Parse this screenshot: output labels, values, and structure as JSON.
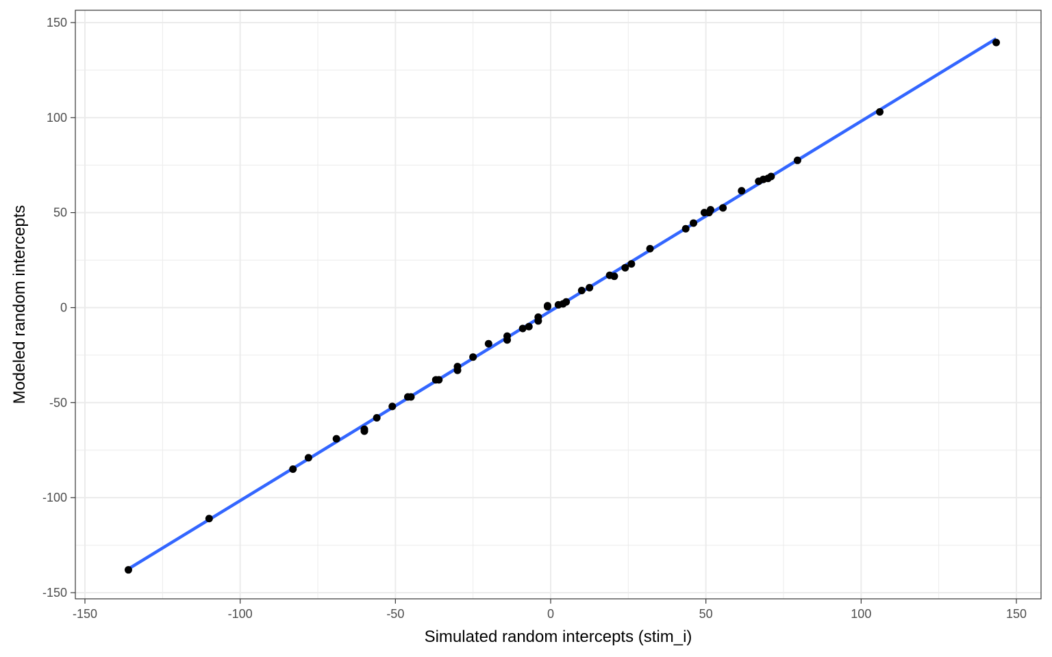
{
  "chart_data": {
    "type": "scatter",
    "title": "",
    "xlabel": "Simulated random intercepts (stim_i)",
    "ylabel": "Modeled random intercepts",
    "xlim": [
      -150,
      150
    ],
    "ylim": [
      -150,
      150
    ],
    "x_ticks": [
      -150,
      -100,
      -50,
      0,
      50,
      100,
      150
    ],
    "y_ticks": [
      -150,
      -100,
      -50,
      0,
      50,
      100,
      150
    ],
    "x_tick_labels": [
      "-150",
      "-100",
      "-50",
      "0",
      "50",
      "100",
      "150"
    ],
    "y_tick_labels": [
      "-150",
      "-100",
      "-50",
      "0",
      "50",
      "100",
      "150"
    ],
    "grid": true,
    "legend": "none",
    "colors": {
      "points": "#000000",
      "fit_line": "#3366FF",
      "grid": "#ebebeb",
      "panel_border": "#333333"
    },
    "series": [
      {
        "kind": "points",
        "x": [
          -136,
          -110,
          -83,
          -78,
          -69,
          -60,
          -60,
          -56,
          -51,
          -46,
          -45,
          -37,
          -36,
          -30,
          -30,
          -25,
          -20,
          -14,
          -14,
          -9,
          -7,
          -4,
          -4,
          -1,
          -1,
          2.5,
          4,
          5,
          10,
          12.5,
          19,
          20.5,
          24,
          26,
          32,
          43.5,
          46,
          49.5,
          51,
          51.5,
          55.5,
          61.5,
          67,
          68.5,
          70,
          71,
          79.5,
          106,
          143.5
        ],
        "y": [
          -138,
          -111,
          -85,
          -79,
          -69,
          -64,
          -65,
          -58,
          -52,
          -47,
          -47,
          -38,
          -38,
          -31,
          -33,
          -26,
          -19,
          -15,
          -17,
          -11,
          -10,
          -5,
          -7,
          1,
          0.5,
          1.5,
          2,
          3,
          9,
          10.5,
          17,
          16.5,
          21,
          23,
          31,
          41.5,
          44.5,
          50,
          50,
          51.5,
          52.5,
          61.5,
          66.5,
          67.5,
          68,
          69,
          77.5,
          103,
          139.5
        ]
      },
      {
        "kind": "fit-line",
        "x": [
          -136,
          143.5
        ],
        "y": [
          -137.5,
          141.5
        ]
      }
    ]
  }
}
